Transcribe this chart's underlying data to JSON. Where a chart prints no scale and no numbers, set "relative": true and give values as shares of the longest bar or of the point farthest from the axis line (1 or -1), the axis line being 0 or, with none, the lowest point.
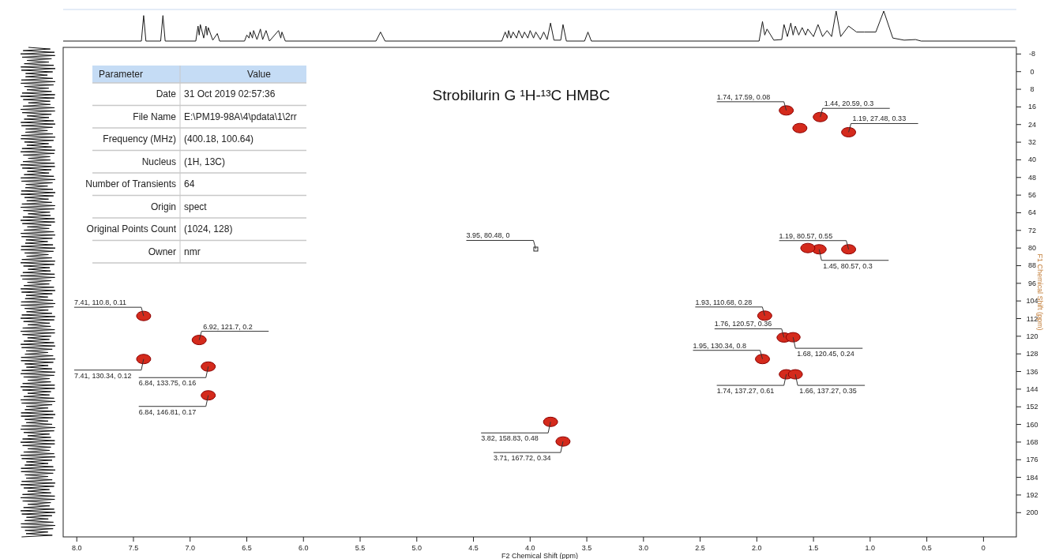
{
  "chart_data": [
    {
      "type": "line",
      "relative": true,
      "xlim": [
        8.12,
        -0.29
      ],
      "series": [
        {
          "color": "#1a1a1a",
          "x": [
            8.12,
            7.43,
            7.41,
            7.39,
            7.26,
            7.24,
            7.22,
            6.95,
            6.93,
            6.92,
            6.91,
            6.88,
            6.86,
            6.85,
            6.84,
            6.8,
            6.76,
            6.74,
            6.52,
            6.5,
            6.48,
            6.47,
            6.45,
            6.44,
            6.41,
            6.38,
            6.36,
            6.33,
            6.3,
            6.22,
            6.2,
            6.19,
            6.16,
            5.36,
            5.32,
            5.28,
            4.25,
            4.22,
            4.2,
            4.19,
            4.17,
            4.15,
            4.12,
            4.1,
            4.07,
            4.05,
            4.02,
            4.0,
            3.97,
            3.95,
            3.91,
            3.88,
            3.85,
            3.82,
            3.79,
            3.73,
            3.71,
            3.68,
            3.52,
            3.49,
            3.46,
            1.98,
            1.95,
            1.93,
            1.91,
            1.85,
            1.78,
            1.76,
            1.73,
            1.7,
            1.68,
            1.66,
            1.63,
            1.6,
            1.57,
            1.55,
            1.5,
            1.46,
            1.42,
            1.38,
            1.34,
            1.3,
            1.26,
            1.19,
            1.12,
            1.05,
            0.95,
            0.88,
            0.8,
            0.7,
            0.6,
            0.55,
            -0.28
          ],
          "values": [
            0,
            0,
            0.85,
            0,
            0,
            0.85,
            0,
            0,
            0.5,
            0.2,
            0.55,
            0.1,
            0.5,
            0.2,
            0.45,
            0.03,
            0.25,
            0,
            0,
            0.2,
            0.1,
            0.3,
            0.1,
            0.35,
            0.05,
            0.4,
            0.05,
            0.35,
            0,
            0.35,
            0.1,
            0.3,
            0,
            0,
            0.3,
            0,
            0,
            0.3,
            0.1,
            0.35,
            0.1,
            0.3,
            0.1,
            0.35,
            0.1,
            0.3,
            0.1,
            0.35,
            0.1,
            0.3,
            0.05,
            0.3,
            0.05,
            0.6,
            0.03,
            0.03,
            0.55,
            0,
            0,
            0.3,
            0,
            0,
            0.65,
            0.2,
            0.4,
            0.03,
            0.05,
            0.55,
            0.15,
            0.6,
            0.2,
            0.5,
            0.2,
            0.45,
            0.2,
            0.4,
            0.15,
            0.55,
            0.15,
            0.35,
            0.15,
            1.0,
            0.15,
            0.5,
            0.3,
            0.3,
            0.3,
            1.0,
            0.1,
            0.03,
            0.05,
            0,
            0
          ]
        }
      ]
    },
    {
      "type": "other",
      "annotations": [
        "Parameter",
        "Value",
        "Date",
        "31 Oct 2019 02:57:36",
        "File Name",
        "E:\\PM19-98A\\4\\pdata\\1\\2rr",
        "Frequency (MHz)",
        "(400.18, 100.64)",
        "Nucleus",
        "(1H, 13C)",
        "Number of Transients",
        "64",
        "Origin",
        "spect",
        "Original Points Count",
        "(1024, 128)",
        "Owner",
        "nmr"
      ]
    },
    {
      "type": "scatter",
      "title": "Strobilurin G ¹H-¹³C HMBC",
      "xlabel": "F2 Chemical Shift (ppm)",
      "ylabel": "F1 Chemical Shift (ppm)",
      "xlim": [
        8.12,
        -0.29
      ],
      "ylim": [
        211,
        -11
      ],
      "xticks": [
        {
          "value": 8,
          "label": "8.0"
        },
        {
          "value": 7.5,
          "label": "7.5"
        },
        {
          "value": 7,
          "label": "7.0"
        },
        {
          "value": 6.5,
          "label": "6.5"
        },
        {
          "value": 6,
          "label": "6.0"
        },
        {
          "value": 5.5,
          "label": "5.5"
        },
        {
          "value": 5,
          "label": "5.0"
        },
        {
          "value": 4.5,
          "label": "4.5"
        },
        {
          "value": 4,
          "label": "4.0"
        },
        {
          "value": 3.5,
          "label": "3.5"
        },
        {
          "value": 3,
          "label": "3.0"
        },
        {
          "value": 2.5,
          "label": "2.5"
        },
        {
          "value": 2,
          "label": "2.0"
        },
        {
          "value": 1.5,
          "label": "1.5"
        },
        {
          "value": 1,
          "label": "1.0"
        },
        {
          "value": 0.5,
          "label": "0.5"
        },
        0
      ],
      "yticks": [
        -8,
        0,
        8,
        16,
        24,
        32,
        40,
        48,
        56,
        64,
        72,
        80,
        88,
        96,
        104,
        112,
        120,
        128,
        136,
        144,
        152,
        160,
        168,
        176,
        184,
        192,
        200
      ],
      "series": [
        {
          "color": "#d42a1c",
          "marker": "circle",
          "x": [
            1.74,
            1.44,
            1.19,
            1.62,
            1.19,
            1.45,
            1.55,
            7.41,
            6.92,
            7.41,
            6.84,
            6.84,
            1.93,
            1.76,
            1.68,
            1.95,
            1.74,
            1.66,
            3.82,
            3.71
          ],
          "values": [
            17.59,
            20.59,
            27.48,
            25.6,
            80.57,
            80.57,
            80,
            110.8,
            121.7,
            130.34,
            133.75,
            146.81,
            110.68,
            120.57,
            120.45,
            130.34,
            137.27,
            137.27,
            158.83,
            167.72
          ],
          "value_labels": [
            "1.74, 17.59, 0.08",
            "1.44, 20.59, 0.3",
            "1.19, 27.48, 0.33",
            null,
            "1.19, 80.57, 0.55",
            "1.45, 80.57, 0.3",
            null,
            "7.41, 110.8, 0.11",
            "6.92, 121.7, 0.2",
            "7.41, 130.34, 0.12",
            "6.84, 133.75, 0.16",
            "6.84, 146.81, 0.17",
            "1.93, 110.68, 0.28",
            "1.76, 120.57, 0.36",
            "1.68, 120.45, 0.24",
            "1.95, 130.34, 0.8",
            "1.74, 137.27, 0.61",
            "1.66, 137.27, 0.35",
            "3.82, 158.83, 0.48",
            "3.71, 167.72, 0.34"
          ]
        },
        {
          "color": "#222222",
          "marker": "square",
          "x": [
            3.95
          ],
          "values": [
            80.48
          ],
          "value_labels": [
            "3.95, 80.48, 0"
          ]
        }
      ]
    }
  ]
}
